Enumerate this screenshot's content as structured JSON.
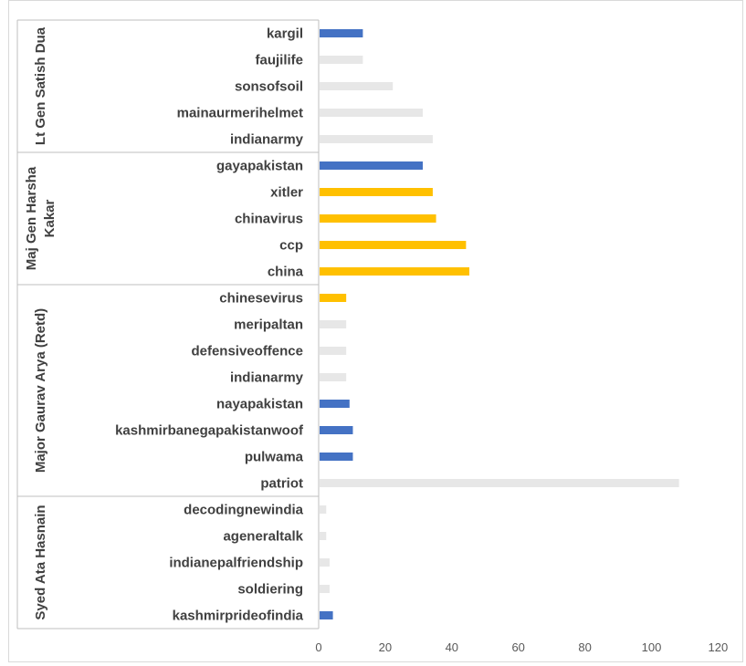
{
  "chart_data": {
    "type": "bar",
    "orientation": "horizontal",
    "title": "",
    "xlabel": "",
    "ylabel": "",
    "xlim": [
      0,
      120
    ],
    "xticks": [
      0,
      20,
      40,
      60,
      80,
      100,
      120
    ],
    "grid": false,
    "legend": "none",
    "colors": {
      "blue": "#4472c4",
      "yellow": "#ffc000",
      "gray": "#e7e7e7"
    },
    "groups": [
      {
        "name": "Lt Gen Satish Dua",
        "lines": [
          "Lt Gen Satish Dua"
        ],
        "items": [
          {
            "label": "kargil",
            "value": 13,
            "color": "blue"
          },
          {
            "label": "faujilife",
            "value": 13,
            "color": "gray"
          },
          {
            "label": "sonsofsoil",
            "value": 22,
            "color": "gray"
          },
          {
            "label": "mainaurmerihelmet",
            "value": 31,
            "color": "gray"
          },
          {
            "label": "indianarmy",
            "value": 34,
            "color": "gray"
          }
        ]
      },
      {
        "name": "Maj Gen Harsha Kakar",
        "lines": [
          "Maj Gen Harsha",
          "Kakar"
        ],
        "items": [
          {
            "label": "gayapakistan",
            "value": 31,
            "color": "blue"
          },
          {
            "label": "xitler",
            "value": 34,
            "color": "yellow"
          },
          {
            "label": "chinavirus",
            "value": 35,
            "color": "yellow"
          },
          {
            "label": "ccp",
            "value": 44,
            "color": "yellow"
          },
          {
            "label": "china",
            "value": 45,
            "color": "yellow"
          }
        ]
      },
      {
        "name": "Major Gaurav Arya (Retd)",
        "lines": [
          "Major Gaurav Arya (Retd)"
        ],
        "items": [
          {
            "label": "chinesevirus",
            "value": 8,
            "color": "yellow"
          },
          {
            "label": "meripaltan",
            "value": 8,
            "color": "gray"
          },
          {
            "label": "defensiveoffence",
            "value": 8,
            "color": "gray"
          },
          {
            "label": "indianarmy",
            "value": 8,
            "color": "gray"
          },
          {
            "label": "nayapakistan",
            "value": 9,
            "color": "blue"
          },
          {
            "label": "kashmirbanegapakistanwoof",
            "value": 10,
            "color": "blue"
          },
          {
            "label": "pulwama",
            "value": 10,
            "color": "blue"
          },
          {
            "label": "patriot",
            "value": 108,
            "color": "gray"
          }
        ]
      },
      {
        "name": "Syed Ata Hasnain",
        "lines": [
          "Syed Ata Hasnain"
        ],
        "items": [
          {
            "label": "decodingnewindia",
            "value": 2,
            "color": "gray"
          },
          {
            "label": "ageneraltalk",
            "value": 2,
            "color": "gray"
          },
          {
            "label": "indianepalfriendship",
            "value": 3,
            "color": "gray"
          },
          {
            "label": "soldiering",
            "value": 3,
            "color": "gray"
          },
          {
            "label": "kashmirprideofindia",
            "value": 4,
            "color": "blue"
          }
        ]
      }
    ]
  }
}
